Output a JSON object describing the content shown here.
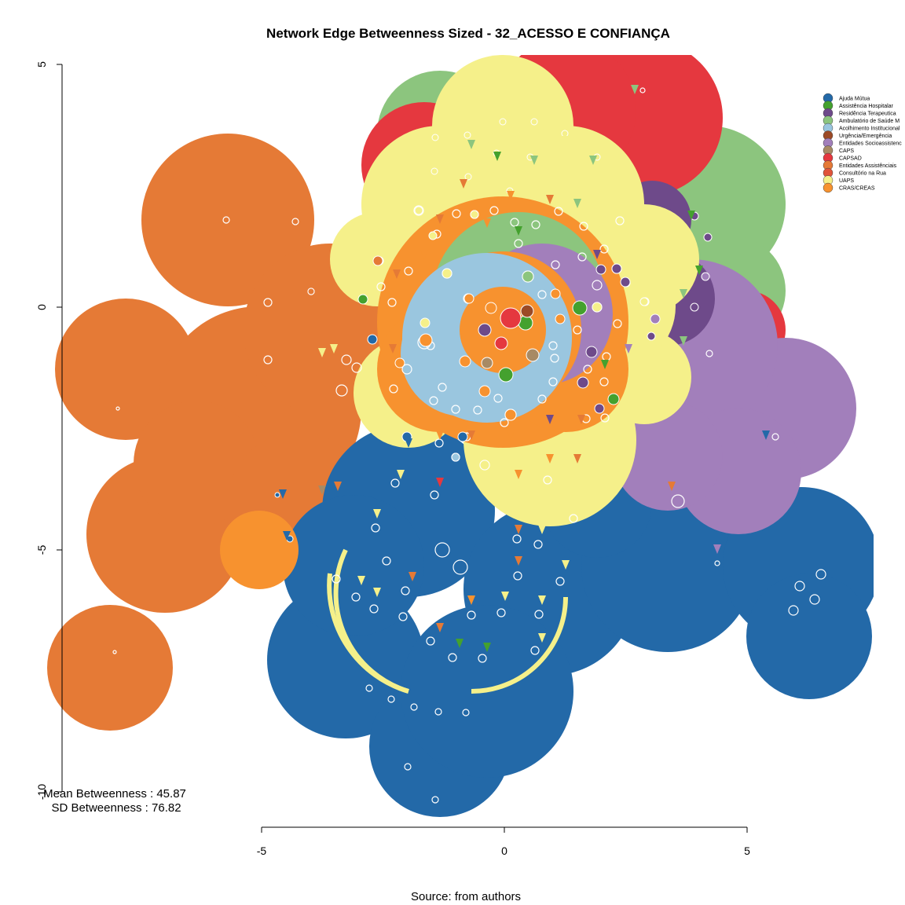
{
  "title": "Network Edge Betweenness Sized - 32_ACESSO E CONFIANÇA",
  "caption": "Source: from authors",
  "stats": {
    "mean": "Mean Betweenness : 45.87",
    "sd": "SD Betweenness : 76.82"
  },
  "axes": {
    "x_ticks": [
      "-5",
      "0",
      "5"
    ],
    "y_ticks": [
      "5",
      "0",
      "-5",
      "-10"
    ]
  },
  "legend": [
    {
      "label": "Ajuda Mútua",
      "color": "#2369a8"
    },
    {
      "label": "Assistência Hospitalar",
      "color": "#44a12e"
    },
    {
      "label": "Residência Terapeutica",
      "color": "#6e4a8a"
    },
    {
      "label": "Ambulatório de Saúde M",
      "color": "#8cc57e"
    },
    {
      "label": "Acolhimento Institucional",
      "color": "#9ac6df"
    },
    {
      "label": "Urgência/Emergência",
      "color": "#9c4a26"
    },
    {
      "label": "Entidades Socioassistenc",
      "color": "#a27fbb"
    },
    {
      "label": "CAPS",
      "color": "#a88a64"
    },
    {
      "label": "CAPSAD",
      "color": "#e5383f"
    },
    {
      "label": "Entidades Assistênciais",
      "color": "#e57a36"
    },
    {
      "label": "Consultório na Rua",
      "color": "#e0543a"
    },
    {
      "label": "UAPS",
      "color": "#f5f08a"
    },
    {
      "label": "CRAS/CREAS",
      "color": "#f7922f"
    }
  ],
  "palette": {
    "blue": "#2369a8",
    "orange": "#e57a36",
    "yellow": "#f5f08a",
    "red": "#e5383f",
    "lightgreen": "#8cc57e",
    "purple": "#6e4a8a",
    "lavender": "#a27fbb",
    "lightblue": "#9ac6df",
    "brightorange": "#f7922f",
    "green": "#44a12e",
    "tan": "#a88a64",
    "brown": "#9c4a26"
  }
}
